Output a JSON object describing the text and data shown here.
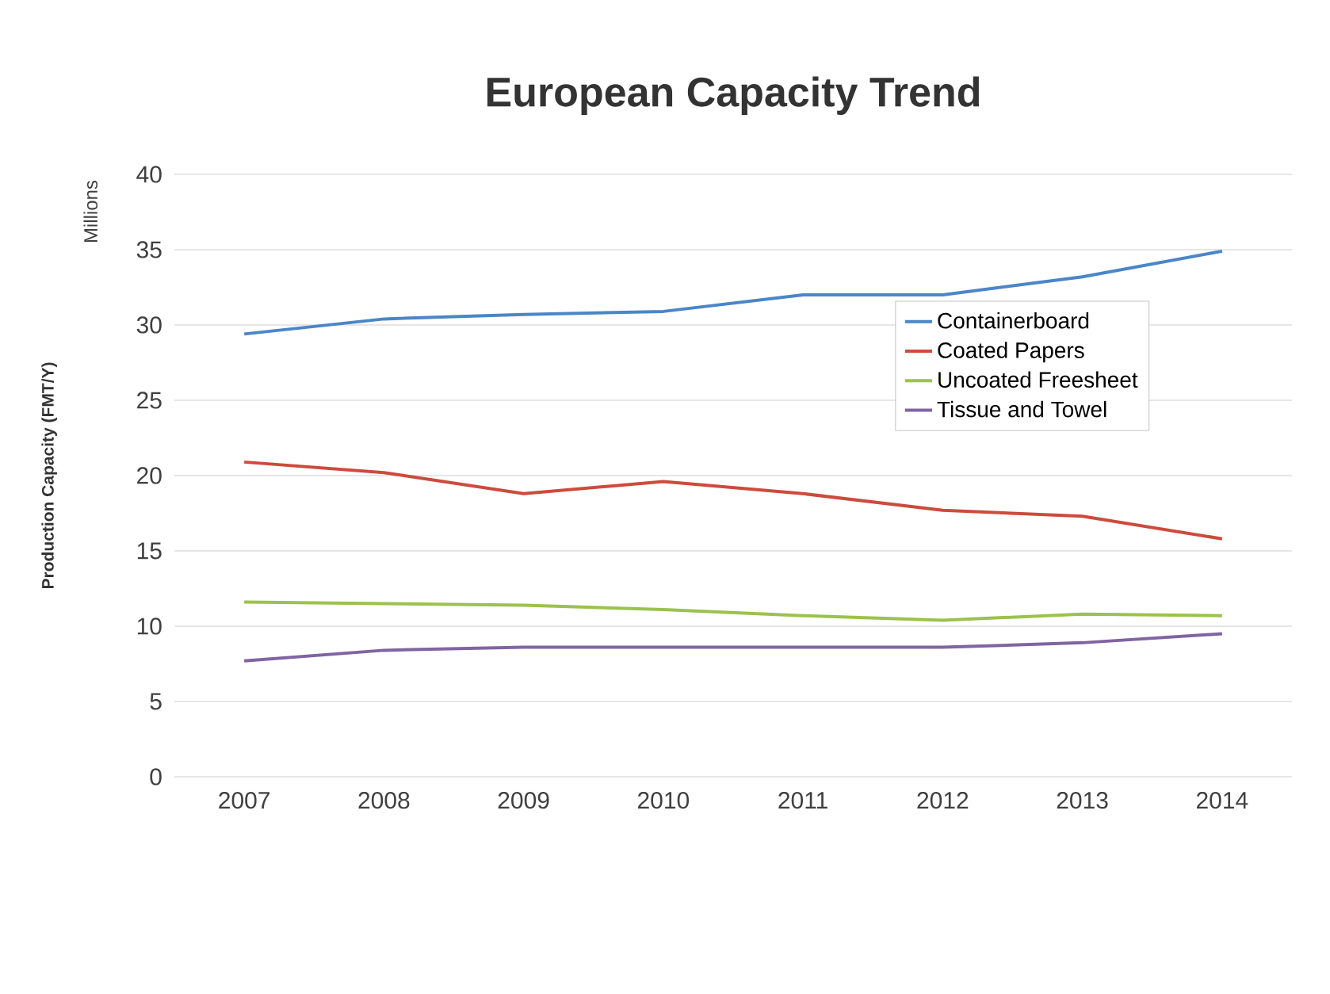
{
  "chart_data": {
    "type": "line",
    "title": "European Capacity Trend",
    "ylabel": "Production Capacity (FMT/Y)",
    "annotations": [
      "Millions"
    ],
    "categories": [
      "2007",
      "2008",
      "2009",
      "2010",
      "2011",
      "2012",
      "2013",
      "2014"
    ],
    "series": [
      {
        "name": "Containerboard",
        "color": "#4a86c8",
        "values": [
          29.4,
          30.4,
          30.7,
          30.9,
          32.0,
          32.0,
          33.2,
          34.9
        ]
      },
      {
        "name": "Coated Papers",
        "color": "#cc4b3c",
        "values": [
          20.9,
          20.2,
          18.8,
          19.6,
          18.8,
          17.7,
          17.3,
          15.8
        ]
      },
      {
        "name": "Uncoated Freesheet",
        "color": "#9bc24c",
        "values": [
          11.6,
          11.5,
          11.4,
          11.1,
          10.7,
          10.4,
          10.8,
          10.7
        ]
      },
      {
        "name": "Tissue and Towel",
        "color": "#8064a2",
        "values": [
          7.7,
          8.4,
          8.6,
          8.6,
          8.6,
          8.6,
          8.9,
          9.5
        ]
      }
    ],
    "ylim": [
      0,
      40
    ],
    "yticks": [
      0,
      5,
      10,
      15,
      20,
      25,
      30,
      35,
      40
    ],
    "grid": "y",
    "legend": "right",
    "marker": "none",
    "line_style": "solid"
  }
}
